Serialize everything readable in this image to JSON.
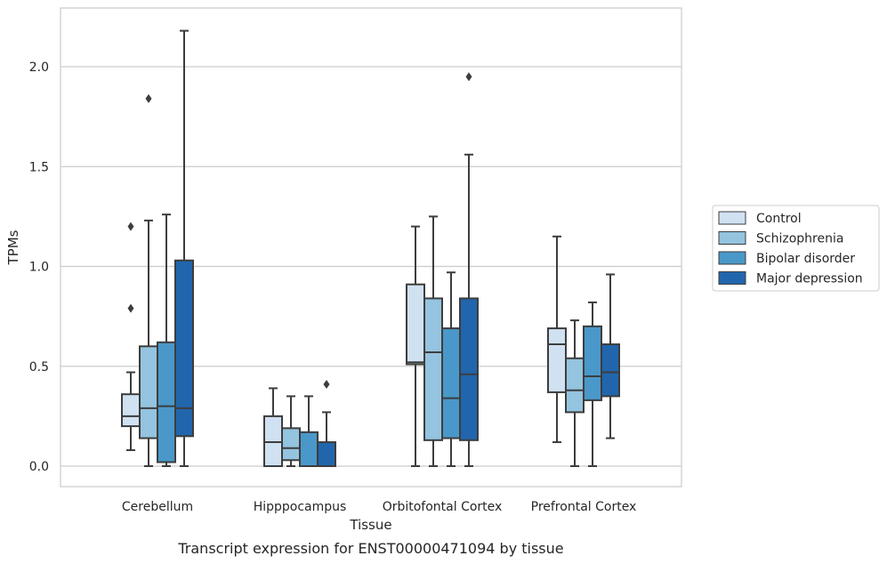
{
  "chart_data": {
    "type": "boxplot",
    "title": "",
    "caption": "Transcript expression for ENST00000471094 by tissue",
    "xlabel": "Tissue",
    "ylabel": "TPMs",
    "ylim": [
      -0.1,
      2.3
    ],
    "yticks": [
      0.0,
      0.5,
      1.0,
      1.5,
      2.0
    ],
    "ytick_labels": [
      "0.0",
      "0.5",
      "1.0",
      "1.5",
      "2.0"
    ],
    "grid": "horizontal",
    "legend_position": "right",
    "categories": [
      "Cerebellum",
      "Hipppocampus",
      "Orbitofontal Cortex",
      "Prefrontal Cortex"
    ],
    "series": [
      {
        "name": "Control",
        "color": "#d0e1f2",
        "boxes": [
          {
            "whisker_low": 0.08,
            "q1": 0.2,
            "median": 0.25,
            "q3": 0.36,
            "whisker_high": 0.47,
            "outliers": [
              0.79,
              1.2
            ]
          },
          {
            "whisker_low": 0.0,
            "q1": 0.0,
            "median": 0.12,
            "q3": 0.25,
            "whisker_high": 0.39,
            "outliers": []
          },
          {
            "whisker_low": 0.0,
            "q1": 0.51,
            "median": 0.52,
            "q3": 0.91,
            "whisker_high": 1.2,
            "outliers": []
          },
          {
            "whisker_low": 0.12,
            "q1": 0.37,
            "median": 0.61,
            "q3": 0.69,
            "whisker_high": 1.15,
            "outliers": []
          }
        ]
      },
      {
        "name": "Schizophrenia",
        "color": "#94c4df",
        "boxes": [
          {
            "whisker_low": 0.0,
            "q1": 0.14,
            "median": 0.29,
            "q3": 0.6,
            "whisker_high": 1.23,
            "outliers": [
              1.84
            ]
          },
          {
            "whisker_low": 0.0,
            "q1": 0.03,
            "median": 0.09,
            "q3": 0.19,
            "whisker_high": 0.35,
            "outliers": []
          },
          {
            "whisker_low": 0.0,
            "q1": 0.13,
            "median": 0.57,
            "q3": 0.84,
            "whisker_high": 1.25,
            "outliers": []
          },
          {
            "whisker_low": 0.0,
            "q1": 0.27,
            "median": 0.38,
            "q3": 0.54,
            "whisker_high": 0.73,
            "outliers": []
          }
        ]
      },
      {
        "name": "Bipolar disorder",
        "color": "#4a98c9",
        "boxes": [
          {
            "whisker_low": 0.0,
            "q1": 0.02,
            "median": 0.3,
            "q3": 0.62,
            "whisker_high": 1.26,
            "outliers": []
          },
          {
            "whisker_low": 0.0,
            "q1": 0.0,
            "median": 0.0,
            "q3": 0.17,
            "whisker_high": 0.35,
            "outliers": []
          },
          {
            "whisker_low": 0.0,
            "q1": 0.14,
            "median": 0.34,
            "q3": 0.69,
            "whisker_high": 0.97,
            "outliers": []
          },
          {
            "whisker_low": 0.0,
            "q1": 0.33,
            "median": 0.45,
            "q3": 0.7,
            "whisker_high": 0.82,
            "outliers": []
          }
        ]
      },
      {
        "name": "Major depression",
        "color": "#2166ac",
        "boxes": [
          {
            "whisker_low": 0.0,
            "q1": 0.15,
            "median": 0.29,
            "q3": 1.03,
            "whisker_high": 2.18,
            "outliers": []
          },
          {
            "whisker_low": 0.0,
            "q1": 0.0,
            "median": 0.0,
            "q3": 0.12,
            "whisker_high": 0.27,
            "outliers": [
              0.41
            ]
          },
          {
            "whisker_low": 0.0,
            "q1": 0.13,
            "median": 0.46,
            "q3": 0.84,
            "whisker_high": 1.56,
            "outliers": [
              1.95
            ]
          },
          {
            "whisker_low": 0.14,
            "q1": 0.35,
            "median": 0.47,
            "q3": 0.61,
            "whisker_high": 0.96,
            "outliers": []
          }
        ]
      }
    ]
  }
}
